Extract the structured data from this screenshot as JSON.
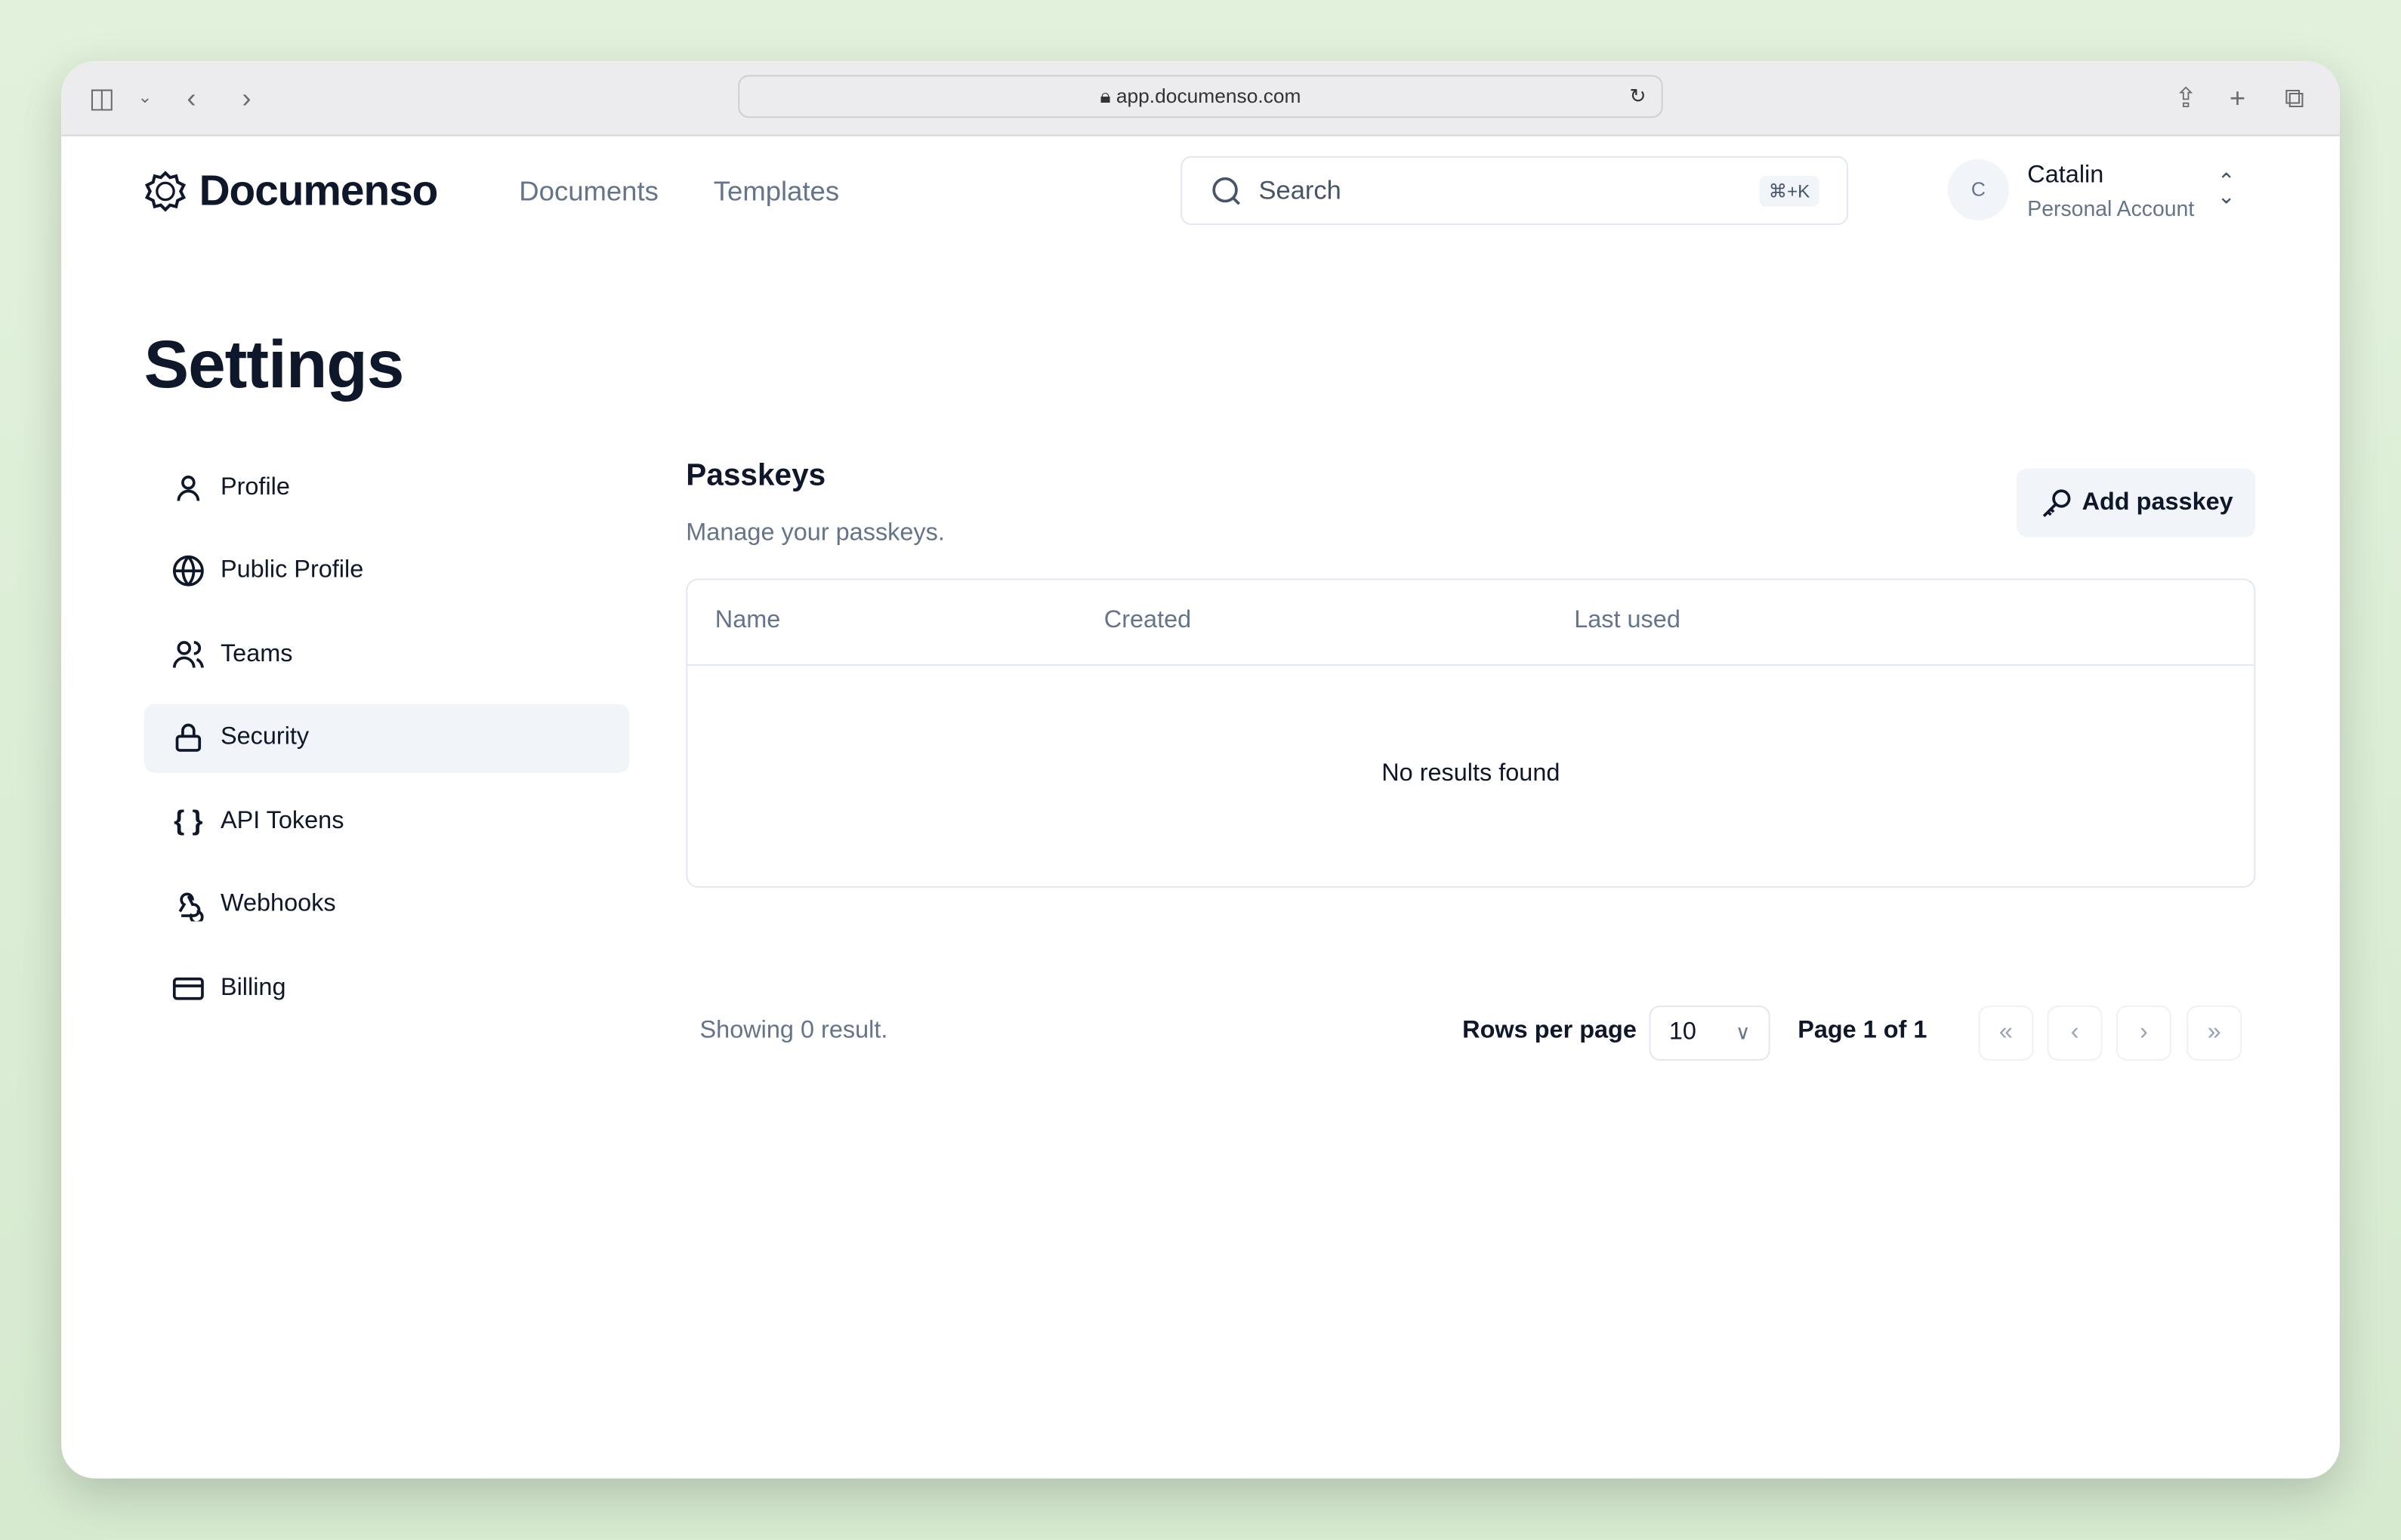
{
  "browser": {
    "url": "app.documenso.com"
  },
  "header": {
    "brand": "Documenso",
    "nav": [
      "Documents",
      "Templates"
    ],
    "search_placeholder": "Search",
    "search_shortcut": "⌘+K",
    "user": {
      "initial": "C",
      "name": "Catalin",
      "account": "Personal Account"
    }
  },
  "page_title": "Settings",
  "sidebar": {
    "items": [
      {
        "label": "Profile",
        "icon": "user-icon"
      },
      {
        "label": "Public Profile",
        "icon": "globe-icon"
      },
      {
        "label": "Teams",
        "icon": "users-icon"
      },
      {
        "label": "Security",
        "icon": "lock-icon",
        "active": true
      },
      {
        "label": "API Tokens",
        "icon": "braces-icon"
      },
      {
        "label": "Webhooks",
        "icon": "webhook-icon"
      },
      {
        "label": "Billing",
        "icon": "credit-card-icon"
      }
    ]
  },
  "main": {
    "title": "Passkeys",
    "subtitle": "Manage your passkeys.",
    "add_button": "Add passkey",
    "columns": [
      "Name",
      "Created",
      "Last used"
    ],
    "empty": "No results found",
    "showing": "Showing 0 result.",
    "rows_per_page_label": "Rows per page",
    "rows_per_page": "10",
    "page_info": "Page 1 of 1"
  }
}
